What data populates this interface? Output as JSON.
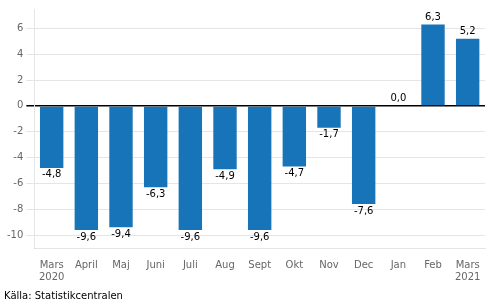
{
  "chart_data": {
    "type": "bar",
    "categories": [
      "Mars\n2020",
      "April",
      "Maj",
      "Juni",
      "Juli",
      "Aug",
      "Sept",
      "Okt",
      "Nov",
      "Dec",
      "Jan",
      "Feb",
      "Mars\n2021"
    ],
    "values": [
      -4.8,
      -9.6,
      -9.4,
      -6.3,
      -9.6,
      -4.9,
      -9.6,
      -4.7,
      -1.7,
      -7.6,
      0.0,
      6.3,
      5.2
    ],
    "value_labels": [
      "-4,8",
      "-9,6",
      "-9,4",
      "-6,3",
      "-9,6",
      "-4,9",
      "-9,6",
      "-4,7",
      "-1,7",
      "-7,6",
      "0,0",
      "6,3",
      "5,2"
    ],
    "data_labels": true,
    "color": "#1874b8",
    "ylim": [
      -11,
      7.5
    ],
    "yticks": [
      -10,
      -8,
      -6,
      -4,
      -2,
      0,
      2,
      4,
      6
    ],
    "grid": true,
    "annotations": [
      "Källa: Statistikcentralen"
    ]
  }
}
